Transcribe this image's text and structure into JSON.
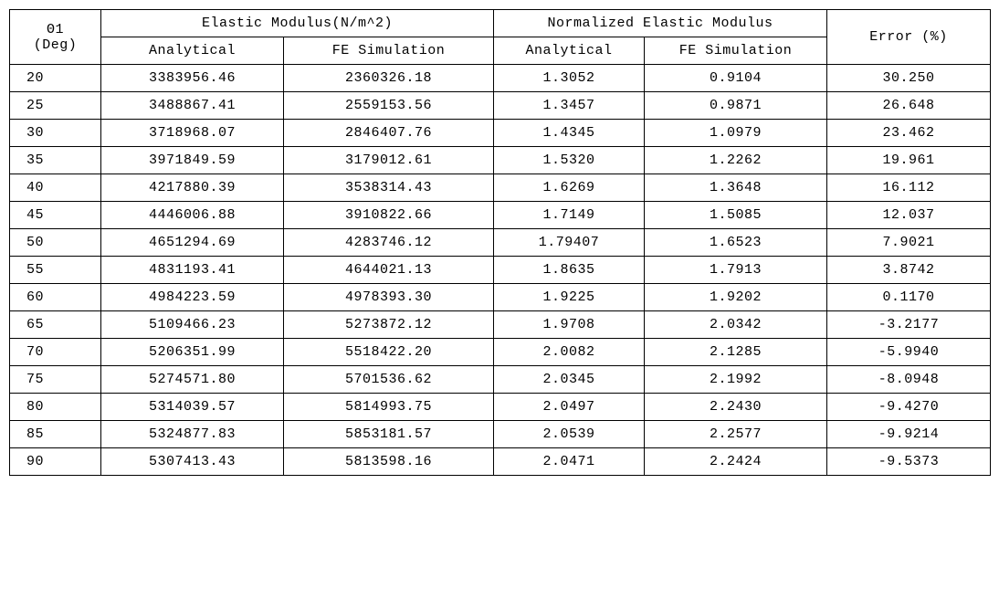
{
  "table": {
    "type": "table",
    "background_color": "#ffffff",
    "grid_color": "#000000",
    "text_color": "#000000",
    "font_size_pt": 11,
    "header": {
      "theta_top": "Θ1",
      "theta_bottom": "(Deg)",
      "em_group": "Elastic Modulus(N/m^2)",
      "nm_group": "Normalized Elastic Modulus",
      "error": "Error (%)",
      "analytical": "Analytical",
      "fe_sim": "FE Simulation"
    },
    "columns": [
      "theta",
      "em_analytical",
      "em_fe",
      "nm_analytical",
      "nm_fe",
      "error"
    ],
    "col_align": [
      "left",
      "center",
      "center",
      "center",
      "center",
      "center"
    ],
    "rows": [
      {
        "theta": "20",
        "em_analytical": "3383956.46",
        "em_fe": "2360326.18",
        "nm_analytical": "1.3052",
        "nm_fe": "0.9104",
        "error": "30.250"
      },
      {
        "theta": "25",
        "em_analytical": "3488867.41",
        "em_fe": "2559153.56",
        "nm_analytical": "1.3457",
        "nm_fe": "0.9871",
        "error": "26.648"
      },
      {
        "theta": "30",
        "em_analytical": "3718968.07",
        "em_fe": "2846407.76",
        "nm_analytical": "1.4345",
        "nm_fe": "1.0979",
        "error": "23.462"
      },
      {
        "theta": "35",
        "em_analytical": "3971849.59",
        "em_fe": "3179012.61",
        "nm_analytical": "1.5320",
        "nm_fe": "1.2262",
        "error": "19.961"
      },
      {
        "theta": "40",
        "em_analytical": "4217880.39",
        "em_fe": "3538314.43",
        "nm_analytical": "1.6269",
        "nm_fe": "1.3648",
        "error": "16.112"
      },
      {
        "theta": "45",
        "em_analytical": "4446006.88",
        "em_fe": "3910822.66",
        "nm_analytical": "1.7149",
        "nm_fe": "1.5085",
        "error": "12.037"
      },
      {
        "theta": "50",
        "em_analytical": "4651294.69",
        "em_fe": "4283746.12",
        "nm_analytical": "1.79407",
        "nm_fe": "1.6523",
        "error": "7.9021"
      },
      {
        "theta": "55",
        "em_analytical": "4831193.41",
        "em_fe": "4644021.13",
        "nm_analytical": "1.8635",
        "nm_fe": "1.7913",
        "error": "3.8742"
      },
      {
        "theta": "60",
        "em_analytical": "4984223.59",
        "em_fe": "4978393.30",
        "nm_analytical": "1.9225",
        "nm_fe": "1.9202",
        "error": "0.1170"
      },
      {
        "theta": "65",
        "em_analytical": "5109466.23",
        "em_fe": "5273872.12",
        "nm_analytical": "1.9708",
        "nm_fe": "2.0342",
        "error": "-3.2177"
      },
      {
        "theta": "70",
        "em_analytical": "5206351.99",
        "em_fe": "5518422.20",
        "nm_analytical": "2.0082",
        "nm_fe": "2.1285",
        "error": "-5.9940"
      },
      {
        "theta": "75",
        "em_analytical": "5274571.80",
        "em_fe": "5701536.62",
        "nm_analytical": "2.0345",
        "nm_fe": "2.1992",
        "error": "-8.0948"
      },
      {
        "theta": "80",
        "em_analytical": "5314039.57",
        "em_fe": "5814993.75",
        "nm_analytical": "2.0497",
        "nm_fe": "2.2430",
        "error": "-9.4270"
      },
      {
        "theta": "85",
        "em_analytical": "5324877.83",
        "em_fe": "5853181.57",
        "nm_analytical": "2.0539",
        "nm_fe": "2.2577",
        "error": "-9.9214"
      },
      {
        "theta": "90",
        "em_analytical": "5307413.43",
        "em_fe": "5813598.16",
        "nm_analytical": "2.0471",
        "nm_fe": "2.2424",
        "error": "-9.5373"
      }
    ]
  }
}
